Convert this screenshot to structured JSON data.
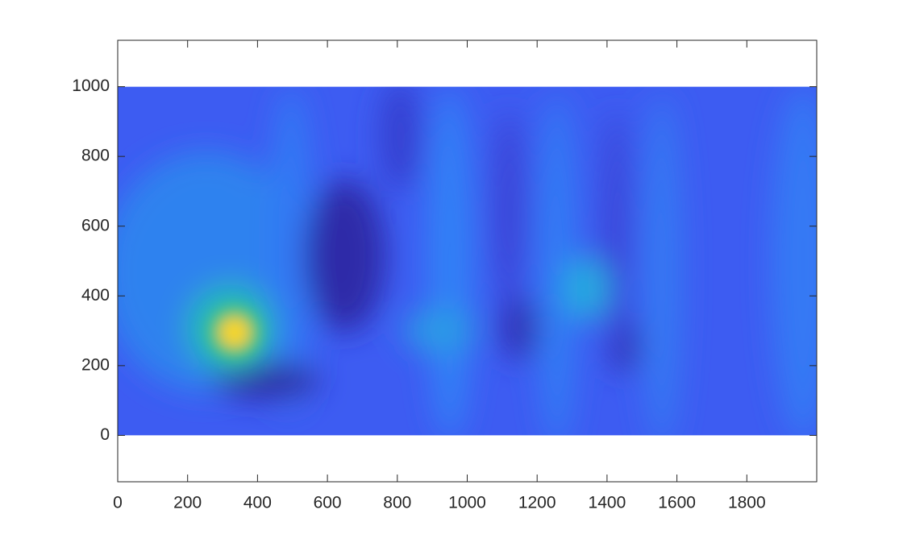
{
  "chart_data": {
    "type": "heatmap",
    "xlim": [
      0,
      2000
    ],
    "ylim": [
      -133,
      1133
    ],
    "xticks": [
      0,
      200,
      400,
      600,
      800,
      1000,
      1200,
      1400,
      1600,
      1800
    ],
    "yticks": [
      0,
      200,
      400,
      600,
      800,
      1000
    ],
    "image_x": [
      0,
      2000
    ],
    "image_y": [
      0,
      1000
    ]
  }
}
